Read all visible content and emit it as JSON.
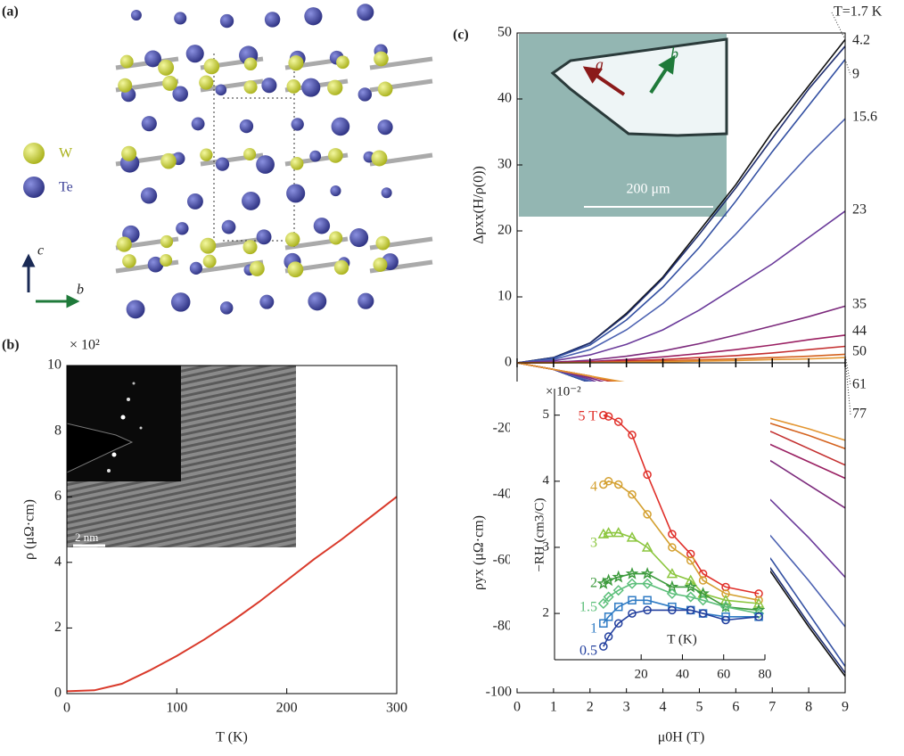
{
  "panel_a": {
    "label": "(a)",
    "legend": [
      {
        "name": "W",
        "color": "#c8d43a"
      },
      {
        "name": "Te",
        "color": "#3a3f96"
      }
    ],
    "axis_labels": [
      "c",
      "b"
    ]
  },
  "chart_data": [
    {
      "type": "line",
      "label": "(b)",
      "x_label": "T (K)",
      "y_label": "ρ (μΩ·cm)",
      "y_multiplier": "× 10²",
      "xlim": [
        0,
        300
      ],
      "ylim": [
        0,
        10
      ],
      "xticks": [
        0,
        100,
        200,
        300
      ],
      "yticks": [
        0,
        2,
        4,
        6,
        8,
        10
      ],
      "x": [
        0,
        25,
        50,
        75,
        100,
        125,
        150,
        175,
        200,
        225,
        250,
        275,
        300
      ],
      "series": [
        {
          "color": "#d93a2b",
          "values": [
            0.07,
            0.1,
            0.3,
            0.7,
            1.15,
            1.65,
            2.2,
            2.8,
            3.45,
            4.1,
            4.7,
            5.35,
            6.0
          ]
        }
      ],
      "inset_image": {
        "scale_bar": "2 nm"
      }
    },
    {
      "type": "line",
      "label": "(c)",
      "y_label": "Δρxx(H/ρ(0))",
      "xlim": [
        0,
        9
      ],
      "ylim": [
        0,
        50
      ],
      "yticks": [
        0,
        10,
        20,
        30,
        40,
        50
      ],
      "x": [
        0,
        1,
        2,
        3,
        4,
        5,
        6,
        7,
        8,
        9
      ],
      "series": [
        {
          "name": "T=1.7 K",
          "color": "#111111",
          "values": [
            0,
            0.8,
            3,
            7.5,
            13,
            20,
            27,
            35,
            42,
            49
          ]
        },
        {
          "name": "4.2",
          "color": "#1f2e6e",
          "values": [
            0,
            0.8,
            3,
            7.3,
            12.8,
            19.5,
            26.5,
            34,
            41.5,
            48
          ]
        },
        {
          "name": "9",
          "color": "#3350a2",
          "values": [
            0,
            0.7,
            2.7,
            6.5,
            11.5,
            17.5,
            24.5,
            32,
            39,
            46
          ]
        },
        {
          "name": "15.6",
          "color": "#4c62b2",
          "values": [
            0,
            0.5,
            2,
            5,
            9,
            14,
            19.5,
            25.5,
            31.5,
            37
          ]
        },
        {
          "name": "23",
          "color": "#6a3a9a",
          "values": [
            0,
            0.3,
            1.2,
            2.8,
            5,
            8,
            11.5,
            15,
            19,
            23
          ]
        },
        {
          "name": "35",
          "color": "#7c2a7c",
          "values": [
            0,
            0.1,
            0.4,
            1,
            1.8,
            2.9,
            4.2,
            5.6,
            7,
            8.6
          ]
        },
        {
          "name": "44",
          "color": "#9a2062",
          "values": [
            0,
            0.05,
            0.2,
            0.5,
            0.9,
            1.4,
            2,
            2.7,
            3.5,
            4.2
          ]
        },
        {
          "name": "50",
          "color": "#c43030",
          "values": [
            0,
            0.03,
            0.1,
            0.3,
            0.5,
            0.8,
            1.1,
            1.5,
            2,
            2.5
          ]
        },
        {
          "name": "61",
          "color": "#d4621e",
          "values": [
            0,
            0.02,
            0.06,
            0.15,
            0.3,
            0.45,
            0.6,
            0.8,
            1,
            1.3
          ]
        },
        {
          "name": "77",
          "color": "#e39632",
          "values": [
            0,
            0.01,
            0.03,
            0.08,
            0.15,
            0.25,
            0.35,
            0.5,
            0.6,
            0.8
          ]
        }
      ],
      "inset_image": {
        "arrow_a": "a",
        "arrow_b": "b",
        "scale_bar": "200 μm"
      }
    },
    {
      "type": "line",
      "x_label": "μ0H (T)",
      "y_label": "ρyx (μΩ·cm)",
      "xlim": [
        0,
        9
      ],
      "ylim": [
        -100,
        0
      ],
      "xticks": [
        0,
        1,
        2,
        3,
        4,
        5,
        6,
        7,
        8,
        9
      ],
      "yticks": [
        -100,
        -80,
        -60,
        -40,
        -20
      ],
      "x": [
        0,
        1,
        2,
        3,
        4,
        5,
        6,
        7,
        8,
        9
      ],
      "series": [
        {
          "color": "#111111",
          "values": [
            0,
            -2,
            -6,
            -13,
            -23,
            -35,
            -49,
            -64,
            -80,
            -95
          ]
        },
        {
          "color": "#1f2e6e",
          "values": [
            0,
            -2,
            -6,
            -12.5,
            -22,
            -34,
            -48,
            -63,
            -79,
            -94
          ]
        },
        {
          "color": "#3350a2",
          "values": [
            0,
            -2,
            -6,
            -12,
            -21,
            -32,
            -46,
            -60,
            -76,
            -92
          ]
        },
        {
          "color": "#4c62b2",
          "values": [
            0,
            -2,
            -5.5,
            -11,
            -19,
            -29,
            -41,
            -53,
            -66,
            -80
          ]
        },
        {
          "color": "#6a3a9a",
          "values": [
            0,
            -2,
            -5,
            -10,
            -16,
            -24,
            -32,
            -42,
            -53,
            -65
          ]
        },
        {
          "color": "#7c2a7c",
          "values": [
            0,
            -2,
            -4.5,
            -8,
            -13,
            -18,
            -24,
            -30,
            -37,
            -44
          ]
        },
        {
          "color": "#9a2062",
          "values": [
            0,
            -2,
            -4,
            -7,
            -11,
            -15,
            -20,
            -25,
            -30,
            -35
          ]
        },
        {
          "color": "#c43030",
          "values": [
            0,
            -2,
            -4,
            -7,
            -10,
            -13.5,
            -17,
            -21,
            -26,
            -31
          ]
        },
        {
          "color": "#d4621e",
          "values": [
            0,
            -2,
            -4,
            -6.5,
            -9,
            -12,
            -15,
            -18.5,
            -22,
            -26
          ]
        },
        {
          "color": "#e39632",
          "values": [
            0,
            -2,
            -4,
            -6,
            -8.5,
            -11,
            -14,
            -17,
            -20,
            -23.5
          ]
        }
      ]
    },
    {
      "type": "line",
      "x_label": "T (K)",
      "y_label": "−RH (cm3/C)",
      "y_multiplier": "× 10⁻²",
      "xlim": [
        -22,
        80
      ],
      "ylim": [
        1.3,
        5.4
      ],
      "xticks": [
        20,
        40,
        60,
        80
      ],
      "yticks": [
        2,
        3,
        4,
        5
      ],
      "x": [
        1.7,
        4.2,
        9,
        15.6,
        23,
        35,
        44,
        50,
        61,
        77
      ],
      "series": [
        {
          "name": "5 T",
          "color": "#e0302a",
          "marker": "circle",
          "values": [
            5.0,
            4.98,
            4.9,
            4.7,
            4.1,
            3.2,
            2.9,
            2.6,
            2.4,
            2.3
          ]
        },
        {
          "name": "4",
          "color": "#d4a030",
          "marker": "circle",
          "values": [
            3.95,
            4.0,
            3.95,
            3.8,
            3.5,
            3.0,
            2.8,
            2.5,
            2.3,
            2.2
          ]
        },
        {
          "name": "3",
          "color": "#8cc63f",
          "marker": "triangle",
          "values": [
            3.2,
            3.22,
            3.22,
            3.15,
            3.0,
            2.6,
            2.5,
            2.3,
            2.2,
            2.15
          ]
        },
        {
          "name": "2",
          "color": "#3c9a3c",
          "marker": "star",
          "values": [
            2.45,
            2.5,
            2.55,
            2.6,
            2.6,
            2.4,
            2.4,
            2.3,
            2.1,
            2.05
          ]
        },
        {
          "name": "1.5",
          "color": "#5cbf7a",
          "marker": "diamond",
          "values": [
            2.15,
            2.25,
            2.35,
            2.45,
            2.45,
            2.3,
            2.25,
            2.2,
            2.1,
            2.0
          ]
        },
        {
          "name": "1",
          "color": "#2f7bc4",
          "marker": "square",
          "values": [
            1.85,
            1.95,
            2.1,
            2.2,
            2.2,
            2.1,
            2.05,
            2.0,
            1.95,
            1.95
          ]
        },
        {
          "name": "0.5",
          "color": "#223f9e",
          "marker": "circle",
          "values": [
            1.5,
            1.65,
            1.85,
            2.0,
            2.05,
            2.05,
            2.05,
            2.0,
            1.9,
            1.95
          ]
        }
      ]
    }
  ]
}
